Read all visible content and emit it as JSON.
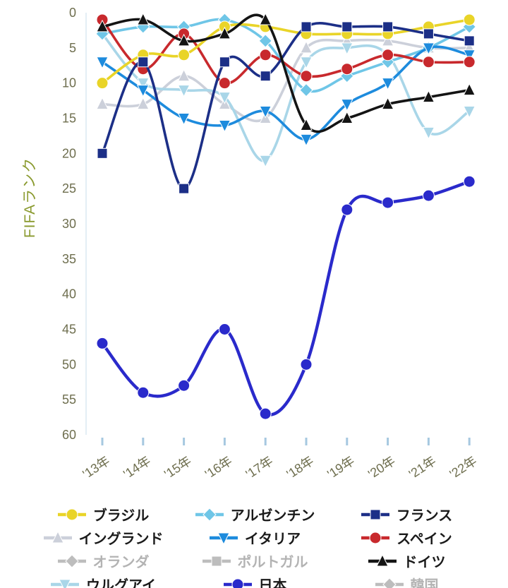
{
  "chart_data": {
    "type": "line",
    "title": "",
    "ylabel": "FIFAランク",
    "xlabel": "",
    "y_inverted": true,
    "ylim": [
      0,
      60
    ],
    "y_ticks": [
      0,
      5,
      10,
      15,
      20,
      25,
      30,
      35,
      40,
      45,
      50,
      55,
      60
    ],
    "grid": false,
    "legend_position": "bottom",
    "colors": {
      "ylabel_color": "#8a9a2f",
      "tick_label_color": "#6e6e4e",
      "axis_tick_color": "#a6c8e0",
      "disabled_legend_color": "#bdbdbd"
    },
    "x_labels": [
      "'13年",
      "'14年",
      "'15年",
      "'16年",
      "'17年",
      "'18年",
      "'19年",
      "'20年",
      "'21年",
      "'22年"
    ],
    "series": [
      {
        "name": "ブラジル",
        "marker": "circle",
        "color": "#e9d428",
        "disabled": false,
        "values": [
          10,
          6,
          6,
          2,
          2,
          3,
          3,
          3,
          2,
          1
        ]
      },
      {
        "name": "アルゼンチン",
        "marker": "diamond",
        "color": "#6fc6e7",
        "disabled": false,
        "values": [
          3,
          2,
          2,
          1,
          4,
          11,
          9,
          7,
          5,
          2
        ]
      },
      {
        "name": "フランス",
        "marker": "square",
        "color": "#1c2f87",
        "disabled": false,
        "values": [
          20,
          7,
          25,
          7,
          9,
          2,
          2,
          2,
          3,
          4
        ]
      },
      {
        "name": "イングランド",
        "marker": "triangle-up",
        "color": "#ccd0da",
        "disabled": false,
        "values": [
          13,
          13,
          9,
          13,
          15,
          5,
          4,
          4,
          5,
          5
        ]
      },
      {
        "name": "イタリア",
        "marker": "triangle-down",
        "color": "#1d8bdd",
        "disabled": false,
        "values": [
          7,
          11,
          15,
          16,
          14,
          18,
          13,
          10,
          5,
          6
        ]
      },
      {
        "name": "スペイン",
        "marker": "circle",
        "color": "#c8292d",
        "disabled": false,
        "values": [
          1,
          8,
          3,
          10,
          6,
          9,
          8,
          6,
          7,
          7
        ]
      },
      {
        "name": "オランダ",
        "marker": "diamond",
        "color": "#bdbdbd",
        "disabled": true,
        "values": null
      },
      {
        "name": "ポルトガル",
        "marker": "square",
        "color": "#c6c6c6",
        "disabled": true,
        "values": null
      },
      {
        "name": "ドイツ",
        "marker": "triangle-up",
        "color": "#141414",
        "disabled": false,
        "values": [
          2,
          1,
          4,
          3,
          1,
          16,
          15,
          13,
          12,
          11
        ]
      },
      {
        "name": "ウルグアイ",
        "marker": "triangle-down",
        "color": "#a9d6e8",
        "disabled": false,
        "values": [
          3,
          10,
          11,
          12,
          21,
          7,
          5,
          6,
          17,
          14
        ]
      },
      {
        "name": "日本",
        "marker": "circle",
        "color": "#2a2acb",
        "disabled": false,
        "values": [
          47,
          54,
          53,
          45,
          57,
          50,
          28,
          27,
          26,
          24
        ]
      },
      {
        "name": "韓国",
        "marker": "diamond",
        "color": "#bdbdbd",
        "disabled": true,
        "values": null
      }
    ]
  }
}
